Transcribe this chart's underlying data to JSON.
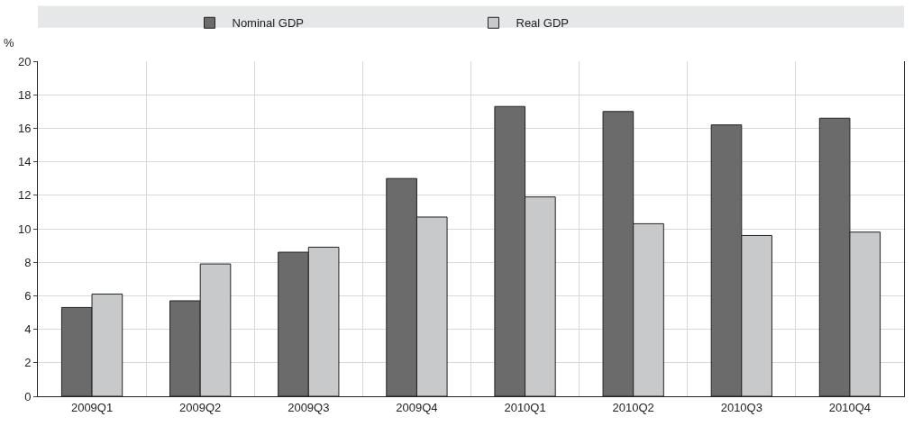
{
  "chart_data": {
    "type": "bar",
    "ylabel": "%",
    "categories": [
      "2009Q1",
      "2009Q2",
      "2009Q3",
      "2009Q4",
      "2010Q1",
      "2010Q2",
      "2010Q3",
      "2010Q4"
    ],
    "series": [
      {
        "name": "Nominal GDP",
        "color": "#6b6b6b",
        "values": [
          5.3,
          5.7,
          8.6,
          13.0,
          17.3,
          17.0,
          16.2,
          16.6
        ]
      },
      {
        "name": "Real GDP",
        "color": "#c8c9cb",
        "values": [
          6.1,
          7.9,
          8.9,
          10.7,
          11.9,
          10.3,
          9.6,
          9.8
        ]
      }
    ],
    "ylim": [
      0,
      20
    ],
    "yticks": [
      0,
      2,
      4,
      6,
      8,
      10,
      12,
      14,
      16,
      18,
      20
    ],
    "grid": true,
    "legend": "top"
  }
}
